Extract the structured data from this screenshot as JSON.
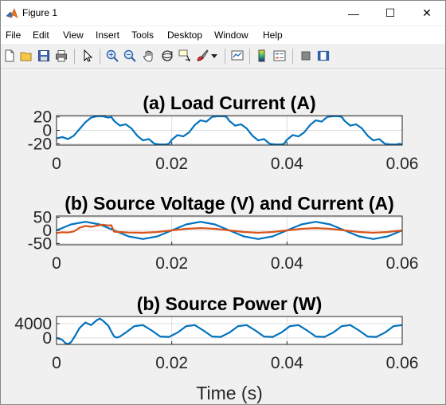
{
  "window": {
    "title": "Figure 1",
    "minimize_label": "—",
    "maximize_label": "☐",
    "close_label": "✕"
  },
  "menubar": {
    "items": [
      {
        "label": "File"
      },
      {
        "label": "Edit"
      },
      {
        "label": "View"
      },
      {
        "label": "Insert"
      },
      {
        "label": "Tools"
      },
      {
        "label": "Desktop"
      },
      {
        "label": "Window"
      },
      {
        "label": "Help"
      }
    ],
    "dock_arrow": "↘"
  },
  "toolbar": {
    "icons": [
      "new-figure-icon",
      "open-file-icon",
      "save-icon",
      "print-icon",
      "edit-plot-arrow-icon",
      "zoom-in-icon",
      "zoom-out-icon",
      "pan-hand-icon",
      "rotate-3d-icon",
      "data-cursor-icon",
      "brush-icon",
      "brush-dropdown-icon",
      "link-plot-icon",
      "colorbar-icon",
      "legend-icon",
      "hide-plot-tools-icon",
      "show-plot-tools-icon"
    ]
  },
  "colors": {
    "series_blue": "#0072BD",
    "series_orange": "#D95319",
    "grid": "#dcdcdc"
  },
  "chart_data": [
    {
      "type": "line",
      "title": "(a) Load Current (A)",
      "xlim": [
        0,
        0.06
      ],
      "ylim": [
        -22,
        22
      ],
      "xticks": [
        0,
        0.02,
        0.04,
        0.06
      ],
      "xtick_labels": [
        "0",
        "0.02",
        "0.04",
        "0.06"
      ],
      "yticks": [
        20,
        0,
        -20
      ],
      "ytick_labels": [
        "20",
        "0",
        "-20"
      ],
      "grid": true,
      "series": [
        {
          "color": "#0072BD",
          "x": [
            0,
            0.001,
            0.002,
            0.003,
            0.004,
            0.005,
            0.006,
            0.007,
            0.008,
            0.009,
            0.0095,
            0.01,
            0.011,
            0.012,
            0.013,
            0.014,
            0.015,
            0.016,
            0.017,
            0.018,
            0.019,
            0.0195,
            0.02,
            0.021,
            0.022,
            0.023,
            0.024,
            0.025,
            0.026,
            0.027,
            0.028,
            0.029,
            0.0295,
            0.03,
            0.031,
            0.032,
            0.033,
            0.034,
            0.035,
            0.036,
            0.037,
            0.038,
            0.039,
            0.0395,
            0.04,
            0.041,
            0.042,
            0.043,
            0.044,
            0.045,
            0.046,
            0.047,
            0.048,
            0.049,
            0.0495,
            0.05,
            0.051,
            0.052,
            0.053,
            0.054,
            0.055,
            0.056,
            0.057,
            0.058,
            0.059,
            0.0595,
            0.06
          ],
          "values": [
            -12,
            -10,
            -13,
            -8,
            2,
            12,
            19,
            21,
            21,
            19,
            20,
            14,
            7,
            9,
            3,
            -8,
            -15,
            -13,
            -20,
            -21,
            -21,
            -20,
            -14,
            -7,
            -9,
            -3,
            8,
            15,
            13,
            20,
            21,
            21,
            20,
            14,
            7,
            9,
            3,
            -8,
            -15,
            -13,
            -20,
            -21,
            -21,
            -20,
            -14,
            -7,
            -9,
            -3,
            8,
            15,
            13,
            20,
            21,
            21,
            20,
            14,
            7,
            9,
            3,
            -8,
            -15,
            -13,
            -20,
            -21,
            -21,
            -20,
            -21
          ]
        }
      ]
    },
    {
      "type": "line",
      "title": "(b) Source Voltage (V) and Current (A)",
      "xlim": [
        0,
        0.06
      ],
      "ylim": [
        -55,
        55
      ],
      "xticks": [
        0,
        0.02,
        0.04,
        0.06
      ],
      "xtick_labels": [
        "0",
        "0.02",
        "0.04",
        "0.06"
      ],
      "yticks": [
        50,
        0,
        -50
      ],
      "ytick_labels": [
        "50",
        "0",
        "-50"
      ],
      "grid": true,
      "series": [
        {
          "color": "#0072BD",
          "x": [
            0,
            0.0025,
            0.005,
            0.0075,
            0.01,
            0.0125,
            0.015,
            0.0175,
            0.02,
            0.0225,
            0.025,
            0.0275,
            0.03,
            0.0325,
            0.035,
            0.0375,
            0.04,
            0.0425,
            0.045,
            0.0475,
            0.05,
            0.0525,
            0.055,
            0.0575,
            0.06
          ],
          "values": [
            0,
            23,
            33,
            23,
            0,
            -23,
            -33,
            -23,
            0,
            23,
            33,
            23,
            0,
            -23,
            -33,
            -23,
            0,
            23,
            33,
            23,
            0,
            -23,
            -33,
            -23,
            0
          ]
        },
        {
          "color": "#D95319",
          "x": [
            0,
            0.001,
            0.002,
            0.003,
            0.004,
            0.005,
            0.006,
            0.007,
            0.008,
            0.009,
            0.0095,
            0.01,
            0.0125,
            0.015,
            0.0175,
            0.02,
            0.0225,
            0.025,
            0.0275,
            0.03,
            0.0325,
            0.035,
            0.0375,
            0.04,
            0.0425,
            0.045,
            0.0475,
            0.05,
            0.0525,
            0.055,
            0.0575,
            0.06
          ],
          "values": [
            -10,
            -7,
            -8,
            -4,
            10,
            17,
            14,
            18,
            22,
            19,
            20,
            -5,
            -8,
            -9,
            -6,
            0,
            6,
            9,
            6,
            0,
            -6,
            -9,
            -6,
            0,
            6,
            9,
            6,
            0,
            -6,
            -9,
            -6,
            0
          ]
        }
      ]
    },
    {
      "type": "line",
      "title": "(b) Source Power (W)",
      "xlim": [
        0,
        0.06
      ],
      "ylim": [
        -1800,
        6000
      ],
      "xticks": [
        0,
        0.02,
        0.04,
        0.06
      ],
      "xtick_labels": [
        "0",
        "0.02",
        "0.04",
        "0.06"
      ],
      "yticks": [
        4000,
        0
      ],
      "ytick_labels": [
        "4000",
        "0"
      ],
      "grid": true,
      "series": [
        {
          "color": "#0072BD",
          "x": [
            0,
            0.001,
            0.0015,
            0.002,
            0.0025,
            0.003,
            0.004,
            0.005,
            0.006,
            0.007,
            0.0075,
            0.008,
            0.009,
            0.0095,
            0.01,
            0.0105,
            0.011,
            0.012,
            0.0135,
            0.015,
            0.0165,
            0.018,
            0.0195,
            0.021,
            0.0225,
            0.024,
            0.0255,
            0.027,
            0.0285,
            0.03,
            0.0315,
            0.033,
            0.0345,
            0.036,
            0.0375,
            0.039,
            0.0405,
            0.042,
            0.0435,
            0.045,
            0.0465,
            0.048,
            0.0495,
            0.051,
            0.0525,
            0.054,
            0.0555,
            0.057,
            0.0585,
            0.06
          ],
          "values": [
            0,
            -500,
            -1400,
            -1700,
            -1200,
            0,
            2800,
            4300,
            3600,
            5000,
            5400,
            4900,
            3400,
            1800,
            400,
            100,
            400,
            1500,
            3300,
            3600,
            2100,
            400,
            300,
            1500,
            3300,
            3600,
            2100,
            400,
            300,
            1500,
            3300,
            3600,
            2100,
            400,
            300,
            1500,
            3300,
            3600,
            2100,
            400,
            300,
            1500,
            3300,
            3600,
            2100,
            400,
            300,
            1500,
            3300,
            3600
          ]
        }
      ],
      "xlabel": "Time (s)"
    }
  ]
}
